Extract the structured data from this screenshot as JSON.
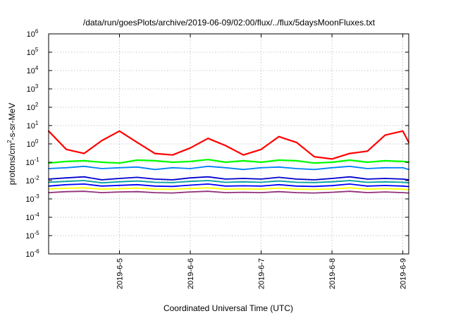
{
  "chart_data": {
    "type": "line",
    "title": "/data/run/goesPlots/archive/2019-06-09/02:00/flux/../flux/5daysMoonFluxes.txt",
    "xlabel": "Coordinated Universal Time (UTC)",
    "ylabel": {
      "pre": "protons/cm",
      "sup": "2",
      "post": "-s-sr-MeV"
    },
    "yscale": "log",
    "ylim_exp": [
      -6,
      6
    ],
    "y_ticks": [
      {
        "base": "10",
        "exp": "-6"
      },
      {
        "base": "10",
        "exp": "-5"
      },
      {
        "base": "10",
        "exp": "-4"
      },
      {
        "base": "10",
        "exp": "-3"
      },
      {
        "base": "10",
        "exp": "-2"
      },
      {
        "base": "10",
        "exp": "-1"
      },
      {
        "base": "10",
        "exp": "0"
      },
      {
        "base": "10",
        "exp": "1"
      },
      {
        "base": "10",
        "exp": "2"
      },
      {
        "base": "10",
        "exp": "3"
      },
      {
        "base": "10",
        "exp": "4"
      },
      {
        "base": "10",
        "exp": "5"
      },
      {
        "base": "10",
        "exp": "6"
      }
    ],
    "xlim": [
      "2019-06-04 00:00",
      "2019-06-09 02:00"
    ],
    "x_ticks": [
      {
        "label": "2019-6-5",
        "date": "2019-06-05 00:00"
      },
      {
        "label": "2019-6-6",
        "date": "2019-06-06 00:00"
      },
      {
        "label": "2019-6-7",
        "date": "2019-06-07 00:00"
      },
      {
        "label": "2019-6-8",
        "date": "2019-06-08 00:00"
      },
      {
        "label": "2019-6-9",
        "date": "2019-06-09 00:00"
      }
    ],
    "grid": true,
    "legend": "none",
    "sample_times": [
      "2019-06-04 00:00",
      "2019-06-04 06:00",
      "2019-06-04 12:00",
      "2019-06-04 18:00",
      "2019-06-05 00:00",
      "2019-06-05 06:00",
      "2019-06-05 12:00",
      "2019-06-05 18:00",
      "2019-06-06 00:00",
      "2019-06-06 06:00",
      "2019-06-06 12:00",
      "2019-06-06 18:00",
      "2019-06-07 00:00",
      "2019-06-07 06:00",
      "2019-06-07 12:00",
      "2019-06-07 18:00",
      "2019-06-08 00:00",
      "2019-06-08 06:00",
      "2019-06-08 12:00",
      "2019-06-08 18:00",
      "2019-06-09 00:00",
      "2019-06-09 02:00"
    ],
    "series": [
      {
        "color": "#ff0000",
        "values": [
          5,
          0.5,
          0.3,
          1.5,
          5,
          1.2,
          0.3,
          0.25,
          0.6,
          2,
          0.8,
          0.25,
          0.5,
          2.5,
          1.2,
          0.2,
          0.15,
          0.3,
          0.4,
          3,
          5,
          1.2
        ]
      },
      {
        "color": "#00ff00",
        "values": [
          0.09,
          0.11,
          0.12,
          0.1,
          0.09,
          0.13,
          0.12,
          0.1,
          0.11,
          0.14,
          0.1,
          0.12,
          0.1,
          0.13,
          0.12,
          0.09,
          0.1,
          0.13,
          0.1,
          0.12,
          0.11,
          0.1
        ]
      },
      {
        "color": "#0080ff",
        "values": [
          0.045,
          0.05,
          0.06,
          0.045,
          0.05,
          0.055,
          0.04,
          0.05,
          0.045,
          0.06,
          0.05,
          0.04,
          0.05,
          0.055,
          0.045,
          0.04,
          0.05,
          0.06,
          0.045,
          0.05,
          0.05,
          0.04
        ]
      },
      {
        "color": "#0000cc",
        "values": [
          0.012,
          0.014,
          0.016,
          0.011,
          0.013,
          0.015,
          0.012,
          0.011,
          0.014,
          0.016,
          0.012,
          0.013,
          0.012,
          0.015,
          0.012,
          0.011,
          0.013,
          0.016,
          0.012,
          0.013,
          0.012,
          0.011
        ]
      },
      {
        "color": "#00a0a0",
        "values": [
          0.008,
          0.009,
          0.01,
          0.0075,
          0.0085,
          0.0095,
          0.008,
          0.0078,
          0.009,
          0.01,
          0.008,
          0.0085,
          0.008,
          0.0095,
          0.008,
          0.0078,
          0.0085,
          0.01,
          0.008,
          0.0085,
          0.008,
          0.0075
        ]
      },
      {
        "color": "#0000ff",
        "values": [
          0.005,
          0.006,
          0.0065,
          0.005,
          0.0055,
          0.006,
          0.005,
          0.0048,
          0.0056,
          0.0065,
          0.005,
          0.0052,
          0.005,
          0.006,
          0.005,
          0.0048,
          0.0053,
          0.0065,
          0.005,
          0.0054,
          0.005,
          0.0047
        ]
      },
      {
        "color": "#ffff00",
        "values": [
          0.0035,
          0.0038,
          0.004,
          0.0034,
          0.0036,
          0.0039,
          0.0034,
          0.0033,
          0.0037,
          0.004,
          0.0034,
          0.0035,
          0.0034,
          0.0039,
          0.0034,
          0.0033,
          0.0035,
          0.004,
          0.0034,
          0.0036,
          0.0034,
          0.0032
        ]
      },
      {
        "color": "#90307a",
        "values": [
          0.0022,
          0.0025,
          0.0026,
          0.0022,
          0.0024,
          0.0025,
          0.0022,
          0.0021,
          0.0024,
          0.0026,
          0.0022,
          0.0023,
          0.0022,
          0.0025,
          0.0022,
          0.0021,
          0.0023,
          0.0026,
          0.0022,
          0.0024,
          0.0022,
          0.0021
        ]
      }
    ]
  }
}
